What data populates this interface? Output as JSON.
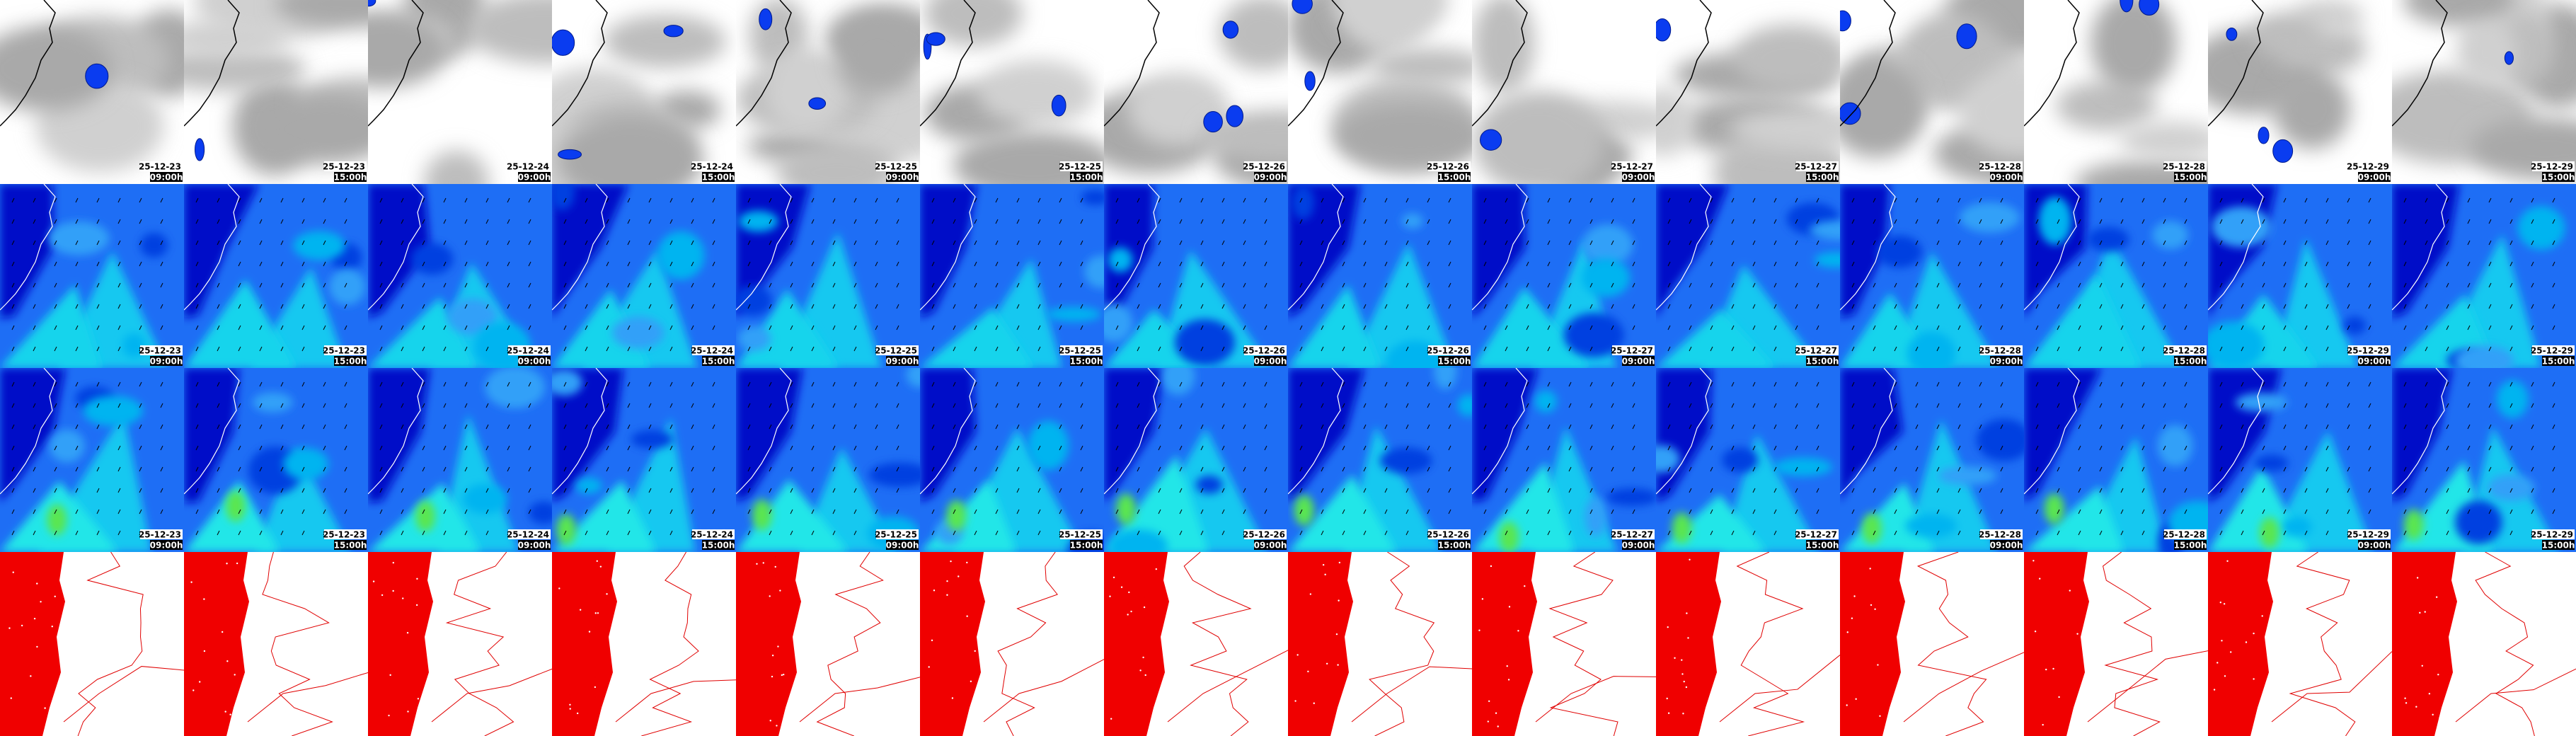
{
  "columns": [
    {
      "date": "25-12-23",
      "time": "09:00h"
    },
    {
      "date": "25-12-23",
      "time": "15:00h"
    },
    {
      "date": "25-12-24",
      "time": "09:00h"
    },
    {
      "date": "25-12-24",
      "time": "15:00h"
    },
    {
      "date": "25-12-25",
      "time": "09:00h"
    },
    {
      "date": "25-12-25",
      "time": "15:00h"
    },
    {
      "date": "25-12-26",
      "time": "09:00h"
    },
    {
      "date": "25-12-26",
      "time": "15:00h"
    },
    {
      "date": "25-12-27",
      "time": "09:00h"
    },
    {
      "date": "25-12-27",
      "time": "15:00h"
    },
    {
      "date": "25-12-28",
      "time": "09:00h"
    },
    {
      "date": "25-12-28",
      "time": "15:00h"
    },
    {
      "date": "25-12-29",
      "time": "09:00h"
    },
    {
      "date": "25-12-29",
      "time": "15:00h"
    }
  ]
}
